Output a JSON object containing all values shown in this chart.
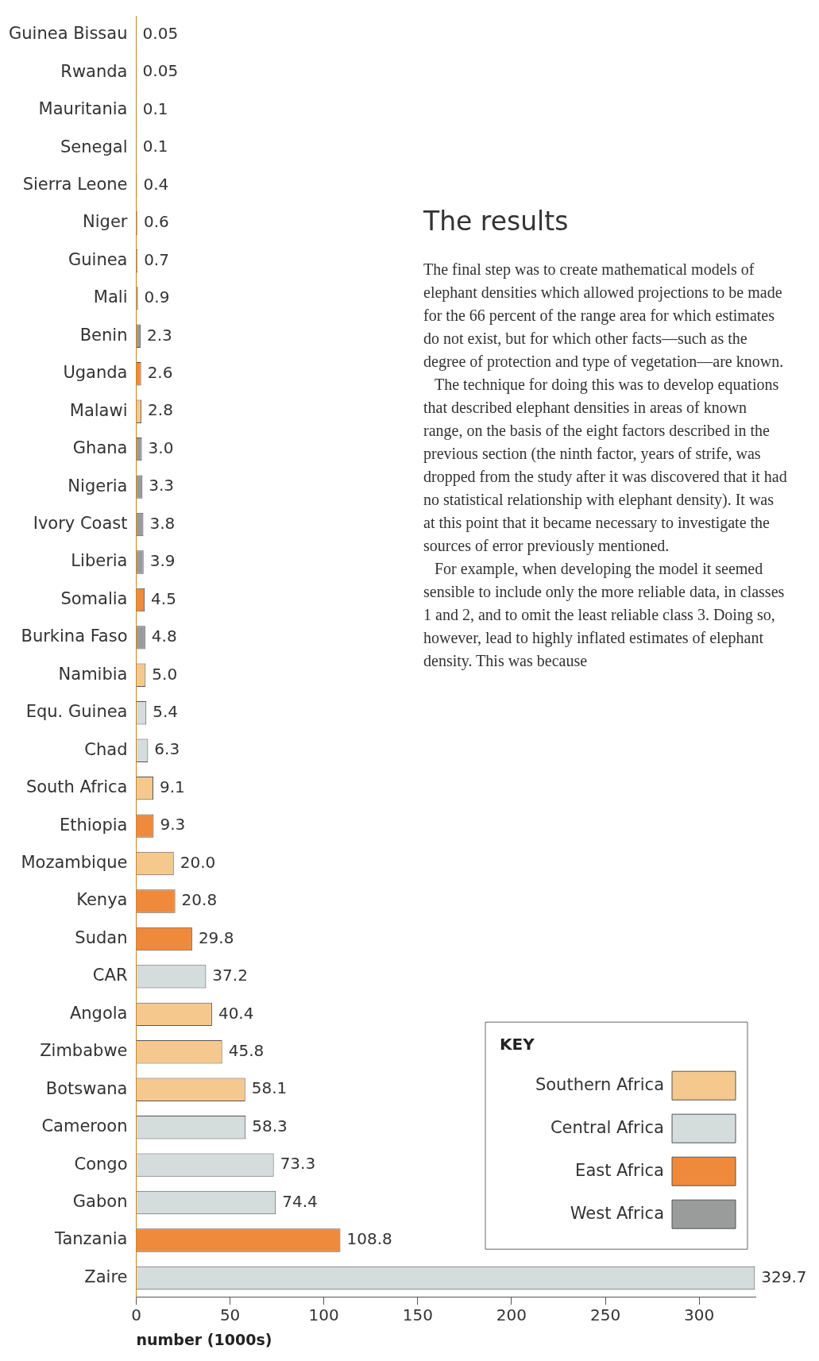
{
  "chart_data": {
    "type": "bar",
    "orientation": "horizontal",
    "stacked": true,
    "categories": [
      "Guinea Bissau",
      "Rwanda",
      "Mauritania",
      "Senegal",
      "Sierra Leone",
      "Niger",
      "Guinea",
      "Mali",
      "Benin",
      "Uganda",
      "Malawi",
      "Ghana",
      "Nigeria",
      "Ivory Coast",
      "Liberia",
      "Somalia",
      "Burkina Faso",
      "Namibia",
      "Equ. Guinea",
      "Chad",
      "South Africa",
      "Ethiopia",
      "Mozambique",
      "Kenya",
      "Sudan",
      "CAR",
      "Angola",
      "Zimbabwe",
      "Botswana",
      "Cameroon",
      "Congo",
      "Gabon",
      "Tanzania",
      "Zaire"
    ],
    "series": [
      {
        "name": "Southern Africa",
        "color": "#f5c98e",
        "values": [
          null,
          null,
          null,
          null,
          null,
          null,
          null,
          null,
          null,
          null,
          2.8,
          null,
          null,
          null,
          null,
          null,
          null,
          5.0,
          null,
          null,
          9.1,
          null,
          20.0,
          null,
          null,
          null,
          40.4,
          45.8,
          58.1,
          null,
          null,
          null,
          null,
          null
        ],
        "value_labels": [
          null,
          null,
          null,
          null,
          null,
          null,
          null,
          null,
          null,
          null,
          "2.8",
          null,
          null,
          null,
          null,
          null,
          null,
          "5.0",
          null,
          null,
          "9.1",
          null,
          "20.0",
          null,
          null,
          null,
          "40.4",
          "45.8",
          "58.1",
          null,
          null,
          null,
          null,
          null
        ]
      },
      {
        "name": "Central Africa",
        "color": "#d5dcdc",
        "values": [
          null,
          null,
          null,
          null,
          null,
          null,
          null,
          null,
          null,
          null,
          null,
          null,
          null,
          null,
          null,
          null,
          null,
          null,
          5.4,
          6.3,
          null,
          null,
          null,
          null,
          null,
          37.2,
          null,
          null,
          null,
          58.3,
          73.3,
          74.4,
          null,
          329.7
        ],
        "value_labels": [
          null,
          null,
          null,
          null,
          null,
          null,
          null,
          null,
          null,
          null,
          null,
          null,
          null,
          null,
          null,
          null,
          null,
          null,
          "5.4",
          "6.3",
          null,
          null,
          null,
          null,
          null,
          "37.2",
          null,
          null,
          null,
          "58.3",
          "73.3",
          "74.4",
          null,
          "329.7"
        ]
      },
      {
        "name": "East Africa",
        "color": "#ef8a3c",
        "values": [
          null,
          0.05,
          null,
          null,
          null,
          null,
          null,
          null,
          null,
          2.6,
          null,
          null,
          null,
          null,
          null,
          4.5,
          null,
          null,
          null,
          null,
          null,
          9.3,
          null,
          20.8,
          29.8,
          null,
          null,
          null,
          null,
          null,
          null,
          null,
          108.8,
          null
        ],
        "value_labels": [
          null,
          "0.05",
          null,
          null,
          null,
          null,
          null,
          null,
          null,
          "2.6",
          null,
          null,
          null,
          null,
          null,
          "4.5",
          null,
          null,
          null,
          null,
          null,
          "9.3",
          null,
          "20.8",
          "29.8",
          null,
          null,
          null,
          null,
          null,
          null,
          null,
          "108.8",
          null
        ]
      },
      {
        "name": "West Africa",
        "color": "#9a9c9c",
        "values": [
          0.05,
          null,
          0.1,
          0.1,
          0.4,
          0.6,
          0.7,
          0.9,
          2.3,
          null,
          null,
          3.0,
          3.3,
          3.8,
          3.9,
          null,
          4.8,
          null,
          null,
          null,
          null,
          null,
          null,
          null,
          null,
          null,
          null,
          null,
          null,
          null,
          null,
          null,
          null,
          null
        ],
        "value_labels": [
          "0.05",
          null,
          "0.1",
          "0.1",
          "0.4",
          "0.6",
          "0.7",
          "0.9",
          "2.3",
          null,
          null,
          "3.0",
          "3.3",
          "3.8",
          "3.9",
          null,
          "4.8",
          null,
          null,
          null,
          null,
          null,
          null,
          null,
          null,
          null,
          null,
          null,
          null,
          null,
          null,
          null,
          null,
          null
        ]
      }
    ],
    "xlim": [
      0,
      330
    ],
    "xticks": [
      0,
      50,
      100,
      150,
      200,
      250,
      300
    ],
    "xlabel": "number (1000s)",
    "legend": "bottom right",
    "legend_title": "KEY",
    "annotations": [
      "The results",
      "The final step was to create mathematical models of elephant densities which allowed projections to be made for the 66 percent of the range area for which estimates do not exist, but for which other facts—such as the degree of protection and type of vegetation—are known.",
      "The technique for doing this was to develop equations that described elephant densities in areas of known range, on the basis of the eight factors described in the previous section (the ninth factor, years of strife, was dropped from the study after it was discovered that it had no statistical relationship with elephant density). It was at this point that it became necessary to investigate the sources of error previously mentioned.",
      "For example, when developing the model it seemed sensible to include only the more reliable data, in classes 1 and 2, and to omit the least reliable class 3. Doing so, however, lead to highly inflated estimates of elephant density. This was because"
    ]
  }
}
